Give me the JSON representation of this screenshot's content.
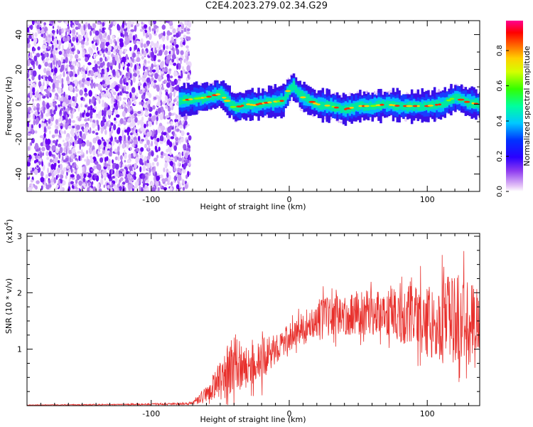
{
  "title": "C2E4.2023.279.02.34.G29",
  "chart_data": [
    {
      "type": "heatmap",
      "xlabel": "Height of straight line (km)",
      "ylabel": "Frequency (Hz)",
      "xlim": [
        -190,
        138
      ],
      "ylim": [
        -50,
        48
      ],
      "xticks": [
        -100,
        0,
        100
      ],
      "yticks": [
        -40,
        -20,
        0,
        20,
        40
      ],
      "colorbar": {
        "label": "Normalized spectral amplitude",
        "range": [
          0,
          0.97
        ],
        "ticks": [
          0.0,
          0.2,
          0.4,
          0.6,
          0.8
        ]
      },
      "ridge": {
        "x": [
          -80,
          -70,
          -60,
          -50,
          -45,
          -40,
          -35,
          -30,
          -25,
          -20,
          -15,
          -10,
          -5,
          0,
          2,
          5,
          10,
          15,
          20,
          30,
          40,
          50,
          60,
          70,
          80,
          90,
          100,
          110,
          115,
          120,
          130,
          138
        ],
        "freq": [
          2,
          3,
          4,
          6,
          2,
          -2,
          -1,
          0,
          -0.5,
          0.5,
          1,
          1.5,
          2,
          9,
          11,
          7,
          4,
          2,
          0,
          -1,
          -3,
          -1,
          -1,
          0,
          -1,
          -1,
          -1,
          0,
          2,
          4,
          1,
          0
        ]
      }
    },
    {
      "type": "line",
      "xlabel": "Height of straight line (km)",
      "ylabel": "SNR (10 * v/v)",
      "y_multiplier_label": "(x10",
      "y_multiplier_exp": "4",
      "xlim": [
        -190,
        138
      ],
      "ylim": [
        0,
        3.05
      ],
      "xticks": [
        -100,
        0,
        100
      ],
      "yticks": [
        1,
        2,
        3
      ],
      "series": [
        {
          "color": "#e8302c",
          "envelope": {
            "x": [
              -190,
              -120,
              -80,
              -70,
              -60,
              -50,
              -40,
              -30,
              -20,
              -10,
              0,
              10,
              20,
              30,
              40,
              50,
              60,
              70,
              80,
              90,
              100,
              110,
              120,
              130,
              138
            ],
            "mean": [
              0.01,
              0.02,
              0.03,
              0.04,
              0.2,
              0.45,
              0.75,
              0.65,
              0.8,
              1.0,
              1.2,
              1.4,
              1.55,
              1.6,
              1.6,
              1.65,
              1.65,
              1.65,
              1.6,
              1.6,
              1.5,
              1.5,
              1.55,
              1.5,
              1.55
            ],
            "spread": [
              0.005,
              0.01,
              0.02,
              0.03,
              0.15,
              0.35,
              0.55,
              0.35,
              0.4,
              0.25,
              0.25,
              0.25,
              0.35,
              0.35,
              0.35,
              0.4,
              0.4,
              0.4,
              0.5,
              0.55,
              0.65,
              0.75,
              0.8,
              0.8,
              0.7
            ]
          }
        }
      ]
    }
  ]
}
